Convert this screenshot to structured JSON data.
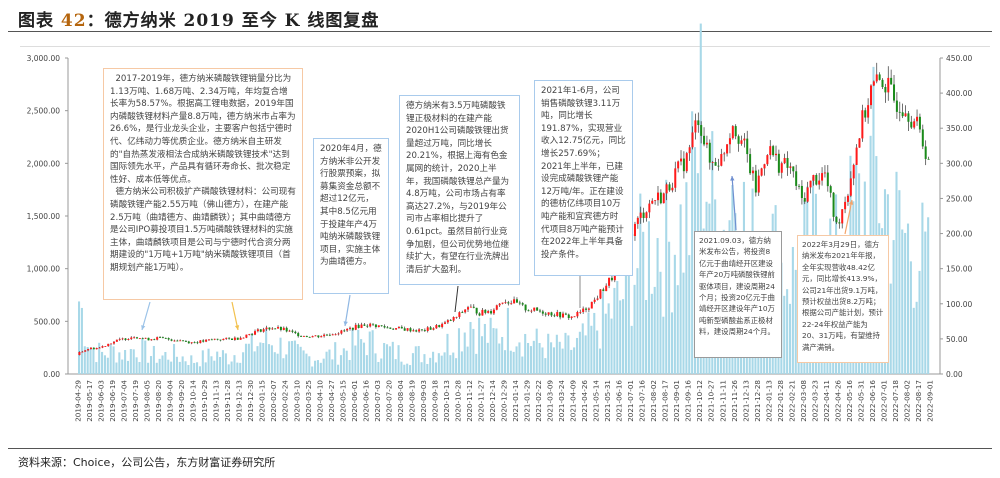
{
  "title": {
    "prefix": "图表 ",
    "number": "42",
    "text": "：德方纳米 2019 至今 K 线图复盘"
  },
  "source": "资料来源：Choice，公司公告，东方财富证券研究所",
  "colors": {
    "up": "#ff1a1a",
    "down": "#1a8a1a",
    "volume": "#a8d8e8",
    "wick": "#333333"
  },
  "annotations": [
    {
      "text": "  2017-2019年，德方纳米磷酸铁锂销量分比为1.13万吨、1.68万吨、2.34万吨，年均复合增长率为58.57%。根据高工锂电数据，2019年国内磷酸铁锂材料产量8.8万吨，德方纳米市占率为26.6%，是行业龙头企业，主要客户包括宁德时代、亿纬动力等优质企业。德方纳米自主研发的\"自热蒸发液相法合成纳米磷酸铁锂技术\"达到国际领先水平，产品具有循环寿命长、批次稳定性好、成本低等优点。\n  德方纳米公司积极扩产磷酸铁锂材料：公司现有磷酸铁锂产能2.55万吨（佛山德方），在建产能2.5万吨（曲靖德方、曲靖麟铁）；其中曲靖德方是公司IPO募投项目1.5万吨磷酸铁锂材料的实施主体，曲靖麟铁项目是公司与宁德时代合资分两期建设的\"1万吨+1万吨\"纳米磷酸铁锂项目（首期规划产能1万吨）。",
      "style": "orange"
    },
    {
      "text": "2020年4月，德方纳米非公开发行股票预案，拟募集资金总额不超过12亿元，其中8.5亿元用于投建年产4万吨纳米磷酸铁锂项目，实施主体为曲靖德方。",
      "style": "blue"
    },
    {
      "text": "德方纳米有3.5万吨磷酸铁锂正极材料的在建产能2020H1公司磷酸铁锂出货量超过万吨，同比增长20.21%，根据上海有色金属网的统计，2020上半年，我国磷酸铁锂总产量为4.8万吨，公司市场占有率高达27.2%，与2019年公司市占率相比提升了0.61pct。虽然目前行业竞争加剧，但公司优势地位继续扩大，有望在行业洗牌出清后扩大盈利。",
      "style": "blue"
    },
    {
      "text": "2021年1-6月，公司销售磷酸铁锂3.11万吨，同比增长191.87%，实现营业收入12.75亿元，同比增长257.69%；2021年上半年，已建设完成磷酸铁锂产能12万吨/年。正在建设的德枋亿纬项目10万吨产能和宜宾德方时代项目8万吨产能预计在2022年上半年具备投产条件。",
      "style": "blue"
    },
    {
      "text": "2021.09.03，德方纳米发布公告，将投资8亿元于曲靖经开区建设年产20万吨磷酸铁锂前驱体项目，建设周期24个月；投资20亿元于曲靖经开区建设年产10万吨新型磷酸盐系正极材料，建设周期24个月。",
      "style": "gray"
    },
    {
      "text": "2022年3月29日，德方纳米发布2021年年报，全年实现营收48.42亿元，同比增长413.9%，公司21年出货9.1万吨，预计权益出货8.2万吨；根据公司产能计划，预计22-24年权益产能为20、31万吨，有望维持满产满销。",
      "style": "orange"
    }
  ],
  "chart_data": {
    "type": "candlestick",
    "title": "",
    "xlabel": "",
    "ylabel": "",
    "y2label": "",
    "ylim": [
      0,
      3000
    ],
    "y2lim": [
      0,
      450
    ],
    "yticks": [
      "0.00",
      "500.00",
      "1,000.00",
      "1,500.00",
      "2,000.00",
      "2,500.00",
      "3,000.00"
    ],
    "y2ticks": [
      "0.00",
      "50.00",
      "100.00",
      "150.00",
      "200.00",
      "250.00",
      "300.00",
      "350.00",
      "400.00",
      "450.00"
    ],
    "grid": false,
    "x": [
      "2019-04-29",
      "2019-05-17",
      "2019-06-03",
      "2019-06-19",
      "2019-07-04",
      "2019-07-19",
      "2019-08-05",
      "2019-08-20",
      "2019-09-04",
      "2019-09-20",
      "2019-10-14",
      "2019-10-29",
      "2019-11-13",
      "2019-11-28",
      "2019-12-13",
      "2019-12-30",
      "2020-01-15",
      "2020-02-07",
      "2020-02-24",
      "2020-03-10",
      "2020-03-25",
      "2020-04-10",
      "2020-04-27",
      "2020-05-15",
      "2020-06-01",
      "2020-06-16",
      "2020-07-03",
      "2020-07-20",
      "2020-08-04",
      "2020-08-19",
      "2020-09-03",
      "2020-09-18",
      "2020-10-13",
      "2020-10-28",
      "2020-11-12",
      "2020-11-27",
      "2020-12-14",
      "2020-12-29",
      "2021-01-14",
      "2021-01-29",
      "2021-02-22",
      "2021-03-09",
      "2021-03-24",
      "2021-04-09",
      "2021-04-26",
      "2021-05-14",
      "2021-05-31",
      "2021-06-16",
      "2021-07-01",
      "2021-07-16",
      "2021-08-02",
      "2021-08-17",
      "2021-09-01",
      "2021-09-16",
      "2021-10-12",
      "2021-10-27",
      "2021-11-11",
      "2021-11-26",
      "2021-12-13",
      "2021-12-28",
      "2022-01-13",
      "2022-01-28",
      "2022-02-21",
      "2022-03-08",
      "2022-03-23",
      "2022-04-11",
      "2022-04-26",
      "2022-05-16",
      "2022-05-31",
      "2022-06-16",
      "2022-07-01",
      "2022-07-18",
      "2022-08-02",
      "2022-08-17",
      "2022-09-01"
    ],
    "close": [
      200,
      240,
      250,
      300,
      330,
      360,
      330,
      340,
      330,
      320,
      300,
      310,
      330,
      330,
      340,
      380,
      420,
      440,
      420,
      380,
      360,
      360,
      380,
      400,
      440,
      470,
      460,
      440,
      430,
      420,
      410,
      440,
      480,
      540,
      640,
      580,
      600,
      700,
      680,
      620,
      600,
      580,
      560,
      540,
      600,
      700,
      850,
      980,
      1300,
      1500,
      1650,
      1700,
      1900,
      2050,
      2450,
      2000,
      2050,
      2400,
      2150,
      1750,
      2150,
      2000,
      1950,
      1650,
      1850,
      1900,
      1400,
      1750,
      2300,
      2700,
      2800,
      2600,
      2550,
      2350,
      2050
    ],
    "volume": [
      110,
      40,
      30,
      35,
      30,
      40,
      30,
      25,
      30,
      25,
      20,
      25,
      30,
      25,
      35,
      40,
      50,
      45,
      40,
      30,
      25,
      25,
      30,
      35,
      45,
      50,
      40,
      35,
      30,
      30,
      30,
      35,
      45,
      60,
      80,
      60,
      55,
      70,
      65,
      50,
      45,
      40,
      40,
      40,
      55,
      70,
      90,
      110,
      150,
      180,
      200,
      190,
      210,
      230,
      380,
      250,
      220,
      300,
      200,
      180,
      200,
      160,
      150,
      180,
      200,
      190,
      170,
      220,
      250,
      300,
      260,
      220,
      200,
      180,
      150
    ]
  }
}
